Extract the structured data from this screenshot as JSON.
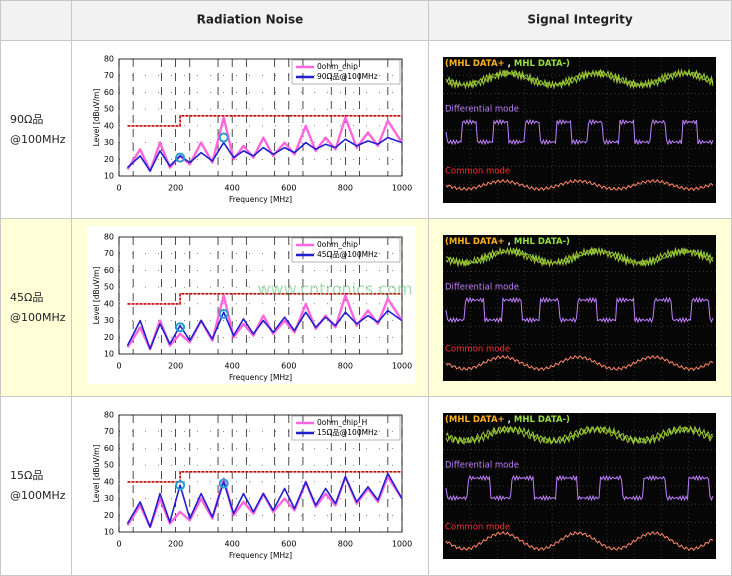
{
  "header": {
    "radiation": "Radiation Noise",
    "signal": "Signal Integrity"
  },
  "rows": [
    {
      "label": [
        "90Ω品",
        "@100MHz"
      ],
      "scope": {
        "pair": [
          "(MHL DATA+",
          ",",
          "MHL DATA-)"
        ],
        "differential": "Differential mode",
        "common": "Common mode"
      }
    },
    {
      "label": [
        "45Ω品",
        "@100MHz"
      ],
      "scope": {
        "pair": [
          "(MHL DATA+",
          ",",
          "MHL DATA-)"
        ],
        "differential": "Differential mode",
        "common": "Common mode"
      },
      "watermark": "www.cntronics.com"
    },
    {
      "label": [
        "15Ω品",
        "@100MHz"
      ],
      "scope": {
        "pair": [
          "(MHL DATA+",
          ",",
          "MHL DATA-)"
        ],
        "differential": "Differential mode",
        "common": "Common mode"
      }
    }
  ],
  "chart_data": [
    {
      "type": "line",
      "xlabel": "Frequency [MHz]",
      "ylabel": "Level [dBuV/m]",
      "xlim": [
        0,
        1000
      ],
      "ylim": [
        10,
        80
      ],
      "xticks": [
        0,
        200,
        400,
        600,
        800,
        1000
      ],
      "yticks": [
        10,
        20,
        30,
        40,
        50,
        60,
        70,
        80
      ],
      "grid": true,
      "x": [
        30,
        75,
        110,
        145,
        180,
        216,
        250,
        290,
        330,
        370,
        405,
        440,
        475,
        510,
        545,
        585,
        620,
        660,
        695,
        730,
        765,
        800,
        840,
        880,
        915,
        950,
        1000
      ],
      "series": [
        {
          "name": "0ohm_chip",
          "color": "#ff66dd",
          "values": [
            14,
            26,
            13,
            30,
            15,
            22,
            17,
            30,
            18,
            45,
            20,
            28,
            21,
            33,
            22,
            30,
            23,
            40,
            25,
            33,
            26,
            45,
            27,
            36,
            28,
            43,
            30
          ]
        },
        {
          "name": "90Ω品@100MHz",
          "color": "#2020d0",
          "values": [
            15,
            22,
            13,
            25,
            16,
            22,
            18,
            24,
            19,
            30,
            21,
            25,
            22,
            27,
            23,
            27,
            24,
            30,
            26,
            29,
            27,
            32,
            28,
            31,
            29,
            33,
            30
          ]
        }
      ],
      "limit": {
        "color": "#c00000",
        "x": [
          30,
          216,
          216,
          1000
        ],
        "values": [
          40,
          40,
          46,
          46
        ]
      },
      "markers": {
        "color": "#20a0d0",
        "x": [
          216,
          370
        ],
        "values": [
          21,
          33
        ]
      }
    },
    {
      "type": "line",
      "xlabel": "Frequency [MHz]",
      "ylabel": "Level [dBuV/m]",
      "xlim": [
        0,
        1000
      ],
      "ylim": [
        10,
        80
      ],
      "xticks": [
        0,
        200,
        400,
        600,
        800,
        1000
      ],
      "yticks": [
        10,
        20,
        30,
        40,
        50,
        60,
        70,
        80
      ],
      "grid": true,
      "x": [
        30,
        75,
        110,
        145,
        180,
        216,
        250,
        290,
        330,
        370,
        405,
        440,
        475,
        510,
        545,
        585,
        620,
        660,
        695,
        730,
        765,
        800,
        840,
        880,
        915,
        950,
        1000
      ],
      "series": [
        {
          "name": "0ohm_chip",
          "color": "#ff66dd",
          "values": [
            14,
            26,
            13,
            30,
            15,
            22,
            17,
            30,
            18,
            45,
            20,
            28,
            21,
            33,
            22,
            30,
            23,
            40,
            25,
            33,
            26,
            45,
            27,
            36,
            28,
            43,
            30
          ]
        },
        {
          "name": "45Ω品@100MHz",
          "color": "#2020d0",
          "values": [
            15,
            30,
            13,
            28,
            16,
            27,
            18,
            30,
            19,
            35,
            21,
            31,
            22,
            30,
            23,
            32,
            24,
            35,
            26,
            32,
            27,
            35,
            28,
            33,
            29,
            36,
            30
          ]
        }
      ],
      "limit": {
        "color": "#c00000",
        "x": [
          30,
          216,
          216,
          1000
        ],
        "values": [
          40,
          40,
          46,
          46
        ]
      },
      "markers": {
        "color": "#20a0d0",
        "x": [
          216,
          370
        ],
        "values": [
          26,
          34
        ]
      }
    },
    {
      "type": "line",
      "xlabel": "Frequency [MHz]",
      "ylabel": "Level [dBuV/m]",
      "xlim": [
        0,
        1000
      ],
      "ylim": [
        10,
        80
      ],
      "xticks": [
        0,
        200,
        400,
        600,
        800,
        1000
      ],
      "yticks": [
        10,
        20,
        30,
        40,
        50,
        60,
        70,
        80
      ],
      "grid": true,
      "x": [
        30,
        75,
        110,
        145,
        180,
        216,
        250,
        290,
        330,
        370,
        405,
        440,
        475,
        510,
        545,
        585,
        620,
        660,
        695,
        730,
        765,
        800,
        840,
        880,
        915,
        950,
        1000
      ],
      "series": [
        {
          "name": "0ohm_chip_H",
          "color": "#ff66dd",
          "values": [
            14,
            26,
            13,
            30,
            15,
            22,
            17,
            30,
            18,
            42,
            20,
            28,
            21,
            33,
            22,
            30,
            23,
            40,
            25,
            33,
            26,
            43,
            27,
            36,
            28,
            43,
            30
          ]
        },
        {
          "name": "15Ω品@100MHz",
          "color": "#2020d0",
          "values": [
            15,
            28,
            13,
            33,
            16,
            38,
            18,
            33,
            19,
            40,
            21,
            33,
            22,
            33,
            23,
            36,
            24,
            40,
            26,
            36,
            27,
            43,
            28,
            37,
            29,
            45,
            30
          ]
        }
      ],
      "limit": {
        "color": "#c00000",
        "x": [
          30,
          216,
          216,
          1000
        ],
        "values": [
          40,
          40,
          46,
          46
        ]
      },
      "markers": {
        "color": "#20a0d0",
        "x": [
          216,
          370
        ],
        "values": [
          38,
          39
        ]
      }
    }
  ]
}
